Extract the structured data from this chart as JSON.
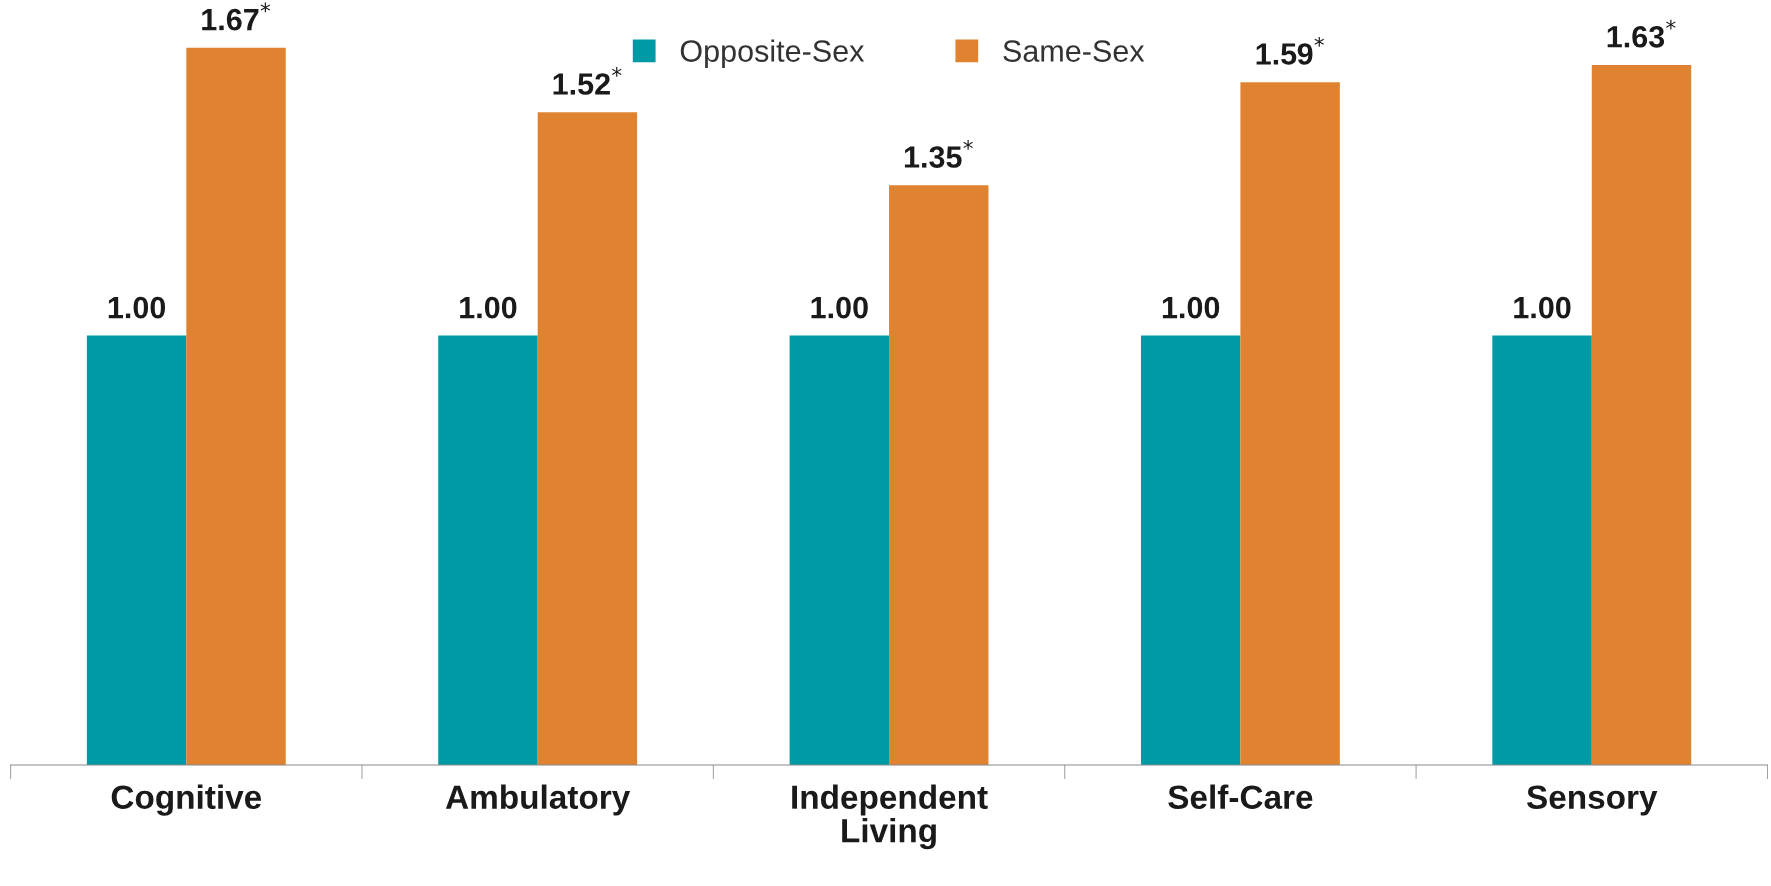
{
  "chart_data": {
    "type": "bar",
    "categories": [
      "Cognitive",
      "Ambulatory",
      "Independent\nLiving",
      "Self-Care",
      "Sensory"
    ],
    "series": [
      {
        "name": "Opposite-Sex",
        "color": "#009aa6",
        "values": [
          1.0,
          1.0,
          1.0,
          1.0,
          1.0
        ],
        "value_labels": [
          "1.00",
          "1.00",
          "1.00",
          "1.00",
          "1.00"
        ]
      },
      {
        "name": "Same-Sex",
        "color": "#e08330",
        "values": [
          1.67,
          1.52,
          1.35,
          1.59,
          1.63
        ],
        "value_labels": [
          "1.67$^{*}$",
          "1.52$^{*}$",
          "1.35$^{*}$",
          "1.59$^{*}$",
          "1.63$^{*}$"
        ]
      }
    ],
    "grid": false,
    "legend": "top",
    "tick_labels": "x"
  }
}
